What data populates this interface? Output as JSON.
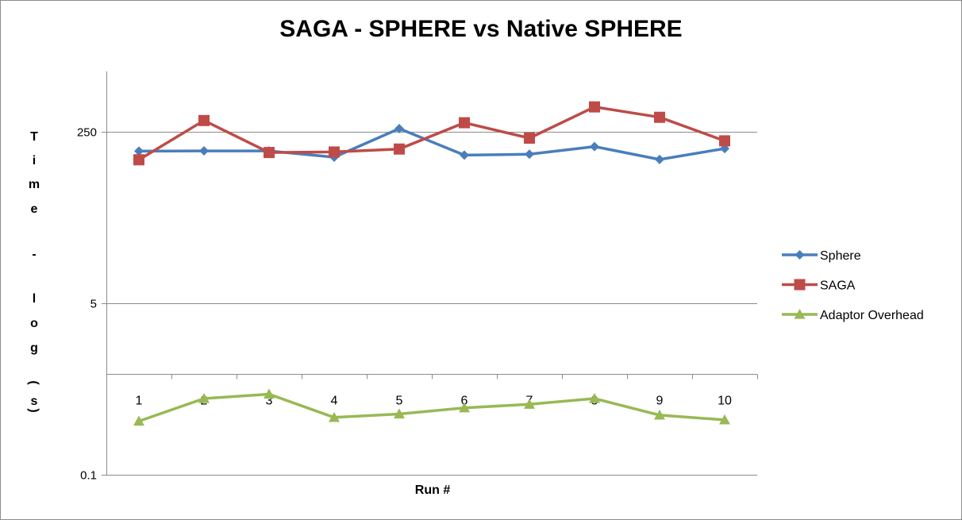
{
  "chart_data": {
    "type": "line",
    "title": "SAGA - SPHERE vs Native SPHERE",
    "xlabel": "Run #",
    "ylabel": "Time - log (s)",
    "y_scale": "log",
    "ylim": [
      0.1,
      1000
    ],
    "y_ticks": [
      {
        "value": 0.1,
        "label": "0.1"
      },
      {
        "value": 5,
        "label": "5"
      },
      {
        "value": 250,
        "label": "250"
      }
    ],
    "categories": [
      "1",
      "2",
      "3",
      "4",
      "5",
      "6",
      "7",
      "8",
      "9",
      "10"
    ],
    "grid": true,
    "legend_position": "right",
    "series": [
      {
        "name": "Sphere",
        "color": "#4a7ebb",
        "marker": "diamond",
        "values": [
          162,
          163,
          163,
          141,
          271,
          148,
          151,
          180,
          134,
          172
        ]
      },
      {
        "name": "SAGA",
        "color": "#be4b48",
        "marker": "square",
        "values": [
          133,
          326,
          157,
          159,
          170,
          310,
          218,
          445,
          351,
          205
        ]
      },
      {
        "name": "Adaptor Overhead",
        "color": "#98b954",
        "marker": "triangle",
        "values": [
          0.34,
          0.57,
          0.63,
          0.37,
          0.4,
          0.46,
          0.5,
          0.57,
          0.39,
          0.35
        ]
      }
    ]
  }
}
